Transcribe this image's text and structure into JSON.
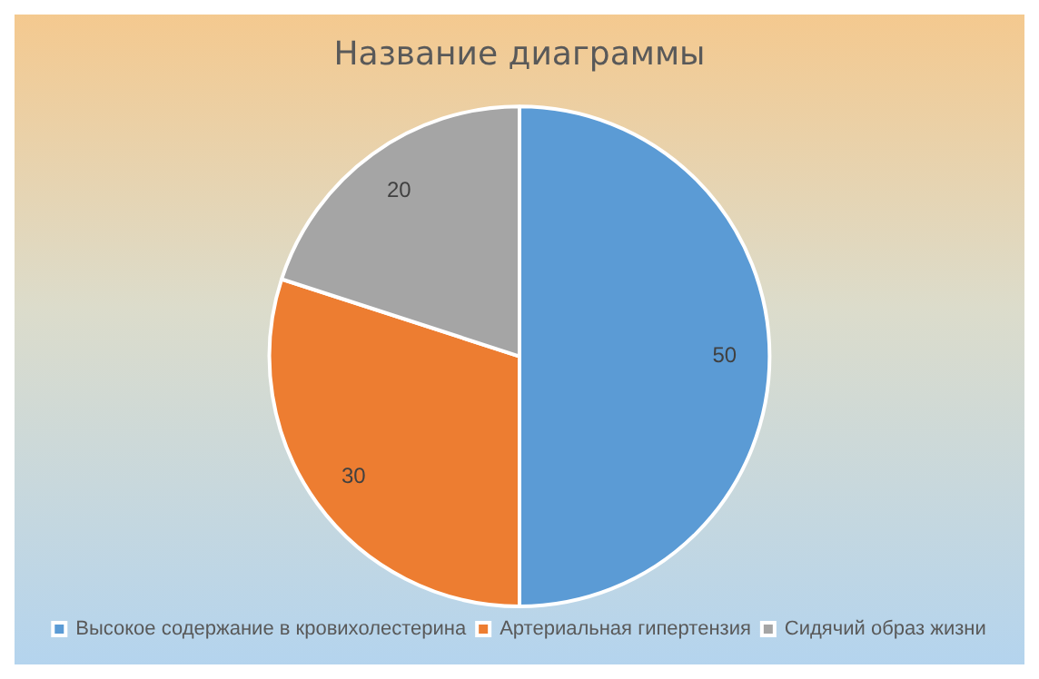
{
  "chart_data": {
    "type": "pie",
    "title": "Название диаграммы",
    "categories": [
      "Высокое содержание в кровихолестерина",
      "Артериальная гипертензия",
      "Сидячий образ жизни"
    ],
    "values": [
      50,
      30,
      20
    ],
    "colors": [
      "#5b9bd5",
      "#ed7d31",
      "#a5a5a5"
    ],
    "data_labels": true,
    "legend": "bottom"
  }
}
